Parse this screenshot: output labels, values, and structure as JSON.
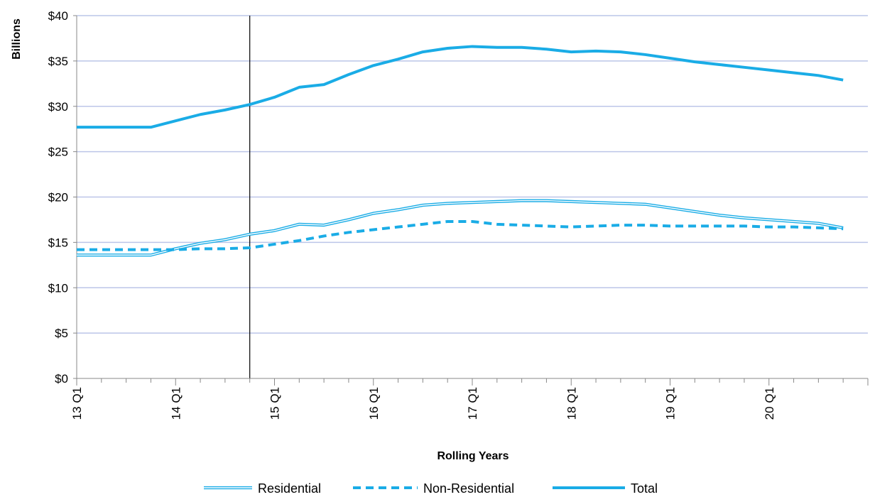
{
  "chart_data": {
    "type": "line",
    "title": "",
    "ylabel": "Billions",
    "xlabel": "Rolling Years",
    "ylim": [
      0,
      40
    ],
    "y_ticks": [
      {
        "value": 0,
        "label": "$0"
      },
      {
        "value": 5,
        "label": "$5"
      },
      {
        "value": 10,
        "label": "$10"
      },
      {
        "value": 15,
        "label": "$15"
      },
      {
        "value": 20,
        "label": "$20"
      },
      {
        "value": 25,
        "label": "$25"
      },
      {
        "value": 30,
        "label": "$30"
      },
      {
        "value": 35,
        "label": "$35"
      },
      {
        "value": 40,
        "label": "$40"
      }
    ],
    "x_ticks": [
      "13 Q1",
      "14 Q1",
      "15 Q1",
      "16 Q1",
      "17 Q1",
      "18 Q1",
      "19 Q1",
      "20 Q1"
    ],
    "categories": [
      "13 Q1",
      "13 Q2",
      "13 Q3",
      "13 Q4",
      "14 Q1",
      "14 Q2",
      "14 Q3",
      "14 Q4",
      "15 Q1",
      "15 Q2",
      "15 Q3",
      "15 Q4",
      "16 Q1",
      "16 Q2",
      "16 Q3",
      "16 Q4",
      "17 Q1",
      "17 Q2",
      "17 Q3",
      "17 Q4",
      "18 Q1",
      "18 Q2",
      "18 Q3",
      "18 Q4",
      "19 Q1",
      "19 Q2",
      "19 Q3",
      "19 Q4",
      "20 Q1",
      "20 Q2",
      "20 Q3",
      "20 Q4"
    ],
    "reference_line_category": "14 Q4",
    "grid": true,
    "legend_position": "bottom",
    "colors": {
      "series": "#1AACE6",
      "grid": "#BCC5E8",
      "axis": "#888888",
      "reference": "#000000"
    },
    "series": [
      {
        "name": "Residential",
        "style": "double",
        "values": [
          13.6,
          13.6,
          13.6,
          13.6,
          14.3,
          14.9,
          15.3,
          15.9,
          16.3,
          17.0,
          16.9,
          17.5,
          18.2,
          18.6,
          19.1,
          19.3,
          19.4,
          19.5,
          19.6,
          19.6,
          19.5,
          19.4,
          19.3,
          19.2,
          18.8,
          18.4,
          18.0,
          17.7,
          17.5,
          17.3,
          17.1,
          16.6
        ]
      },
      {
        "name": "Non-Residential",
        "style": "dashed",
        "values": [
          14.2,
          14.2,
          14.2,
          14.2,
          14.2,
          14.3,
          14.3,
          14.4,
          14.8,
          15.2,
          15.7,
          16.1,
          16.4,
          16.7,
          17.0,
          17.3,
          17.3,
          17.0,
          16.9,
          16.8,
          16.7,
          16.8,
          16.9,
          16.9,
          16.8,
          16.8,
          16.8,
          16.8,
          16.7,
          16.7,
          16.6,
          16.5
        ]
      },
      {
        "name": "Total",
        "style": "solid",
        "values": [
          27.7,
          27.7,
          27.7,
          27.7,
          28.4,
          29.1,
          29.6,
          30.2,
          31.0,
          32.1,
          32.4,
          33.5,
          34.5,
          35.2,
          36.0,
          36.4,
          36.6,
          36.5,
          36.5,
          36.3,
          36.0,
          36.1,
          36.0,
          35.7,
          35.3,
          34.9,
          34.6,
          34.3,
          34.0,
          33.7,
          33.4,
          32.9
        ]
      }
    ]
  }
}
